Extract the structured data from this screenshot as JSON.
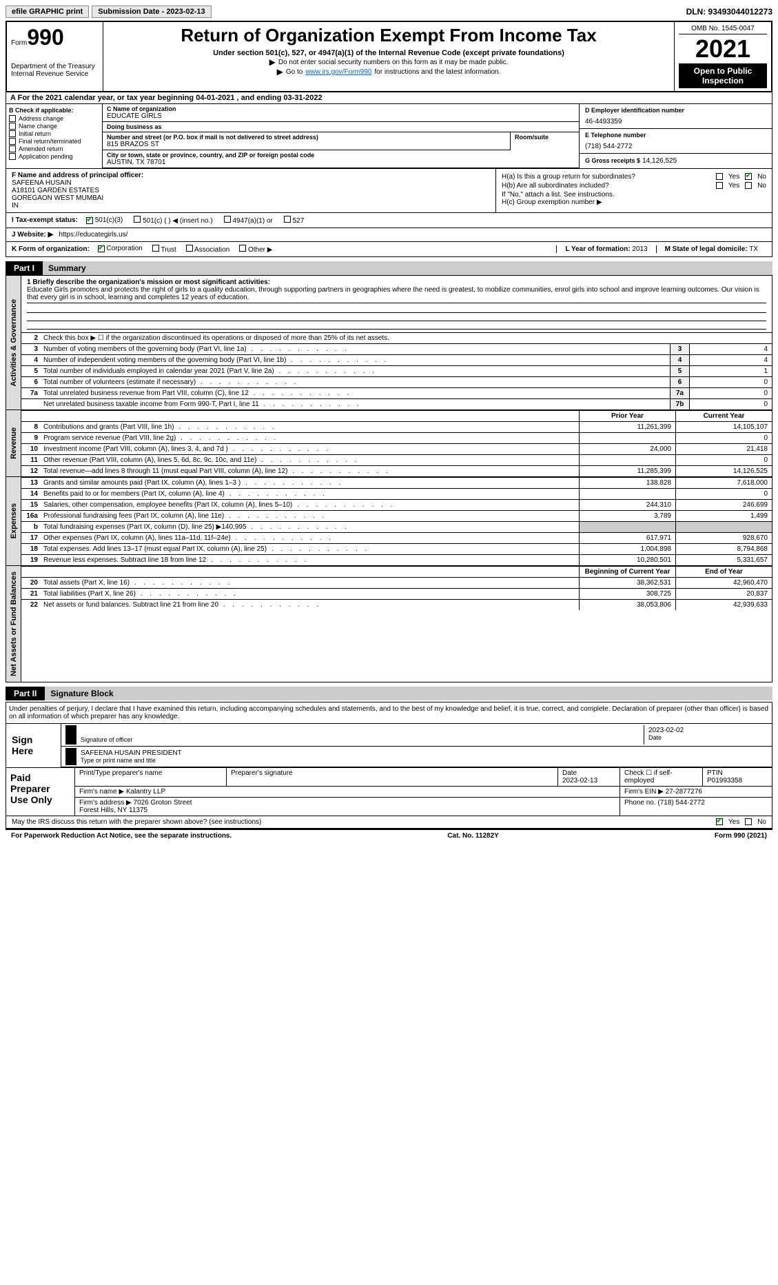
{
  "topbar": {
    "efile": "efile GRAPHIC print",
    "submission": "Submission Date - 2023-02-13",
    "dln": "DLN: 93493044012273"
  },
  "header": {
    "form_prefix": "Form",
    "form_num": "990",
    "dept": "Department of the Treasury\nInternal Revenue Service",
    "title": "Return of Organization Exempt From Income Tax",
    "sub1": "Under section 501(c), 527, or 4947(a)(1) of the Internal Revenue Code (except private foundations)",
    "sub2": "Do not enter social security numbers on this form as it may be made public.",
    "sub3a": "Go to ",
    "sub3_link": "www.irs.gov/Form990",
    "sub3b": " for instructions and the latest information.",
    "omb": "OMB No. 1545-0047",
    "year": "2021",
    "inspect": "Open to Public Inspection"
  },
  "period": "For the 2021 calendar year, or tax year beginning 04-01-2021    , and ending 03-31-2022",
  "sectionB": {
    "label": "B Check if applicable:",
    "opts": [
      "Address change",
      "Name change",
      "Initial return",
      "Final return/terminated",
      "Amended return",
      "Application pending"
    ]
  },
  "sectionC": {
    "name_label": "C Name of organization",
    "name": "EDUCATE GIRLS",
    "dba_label": "Doing business as",
    "dba": "",
    "street_label": "Number and street (or P.O. box if mail is not delivered to street address)",
    "street": "815 BRAZOS ST",
    "room_label": "Room/suite",
    "room": "",
    "city_label": "City or town, state or province, country, and ZIP or foreign postal code",
    "city": "AUSTIN, TX  78701"
  },
  "sectionD": {
    "ein_label": "D Employer identification number",
    "ein": "46-4493359",
    "phone_label": "E Telephone number",
    "phone": "(718) 544-2772",
    "gross_label": "G Gross receipts $",
    "gross": "14,126,525"
  },
  "sectionF": {
    "label": "F  Name and address of principal officer:",
    "name": "SAFEENA HUSAIN",
    "addr1": "A18101 GARDEN ESTATES",
    "addr2": "GOREGAON WEST MUMBAI",
    "addr3": "IN"
  },
  "sectionH": {
    "a_label": "H(a)  Is this a group return for subordinates?",
    "b_label": "H(b)  Are all subordinates included?",
    "b_note": "If \"No,\" attach a list. See instructions.",
    "c_label": "H(c)  Group exemption number ▶"
  },
  "taxStatus": {
    "label": "I    Tax-exempt status:",
    "opts": [
      "501(c)(3)",
      "501(c) (  ) ◀ (insert no.)",
      "4947(a)(1) or",
      "527"
    ]
  },
  "rowJ": {
    "label": "J   Website: ▶",
    "val": "https://educategirls.us/"
  },
  "rowK": {
    "label": "K Form of organization:",
    "opts": [
      "Corporation",
      "Trust",
      "Association",
      "Other ▶"
    ],
    "l_label": "L Year of formation:",
    "l_val": "2013",
    "m_label": "M State of legal domicile:",
    "m_val": "TX"
  },
  "part1": {
    "hdr": "Part I",
    "title": "Summary",
    "mission_label": "1   Briefly describe the organization's mission or most significant activities:",
    "mission": "Educate Girls promotes and protects the right of girls to a quality education, through supporting partners in geographies where the need is greatest, to mobilize communities, enrol girls into school and improve learning outcomes. Our vision is that every girl is in school, learning and completes 12 years of education.",
    "q2": "Check this box ▶ ☐  if the organization discontinued its operations or disposed of more than 25% of its net assets.",
    "rows": [
      {
        "n": "3",
        "t": "Number of voting members of the governing body (Part VI, line 1a)",
        "b": "3",
        "v": "4"
      },
      {
        "n": "4",
        "t": "Number of independent voting members of the governing body (Part VI, line 1b)",
        "b": "4",
        "v": "4"
      },
      {
        "n": "5",
        "t": "Total number of individuals employed in calendar year 2021 (Part V, line 2a)",
        "b": "5",
        "v": "1"
      },
      {
        "n": "6",
        "t": "Total number of volunteers (estimate if necessary)",
        "b": "6",
        "v": "0"
      },
      {
        "n": "7a",
        "t": "Total unrelated business revenue from Part VIII, column (C), line 12",
        "b": "7a",
        "v": "0"
      },
      {
        "n": "",
        "t": "Net unrelated business taxable income from Form 990-T, Part I, line 11",
        "b": "7b",
        "v": "0"
      }
    ],
    "vtab_gov": "Activities & Governance",
    "vtab_rev": "Revenue",
    "vtab_exp": "Expenses",
    "vtab_net": "Net Assets or Fund Balances",
    "prior_hdr": "Prior Year",
    "curr_hdr": "Current Year",
    "revenue": [
      {
        "n": "8",
        "t": "Contributions and grants (Part VIII, line 1h)",
        "p": "11,261,399",
        "c": "14,105,107"
      },
      {
        "n": "9",
        "t": "Program service revenue (Part VIII, line 2g)",
        "p": "",
        "c": "0"
      },
      {
        "n": "10",
        "t": "Investment income (Part VIII, column (A), lines 3, 4, and 7d )",
        "p": "24,000",
        "c": "21,418"
      },
      {
        "n": "11",
        "t": "Other revenue (Part VIII, column (A), lines 5, 6d, 8c, 9c, 10c, and 11e)",
        "p": "",
        "c": "0"
      },
      {
        "n": "12",
        "t": "Total revenue—add lines 8 through 11 (must equal Part VIII, column (A), line 12)",
        "p": "11,285,399",
        "c": "14,126,525"
      }
    ],
    "expenses": [
      {
        "n": "13",
        "t": "Grants and similar amounts paid (Part IX, column (A), lines 1–3 )",
        "p": "138,828",
        "c": "7,618,000"
      },
      {
        "n": "14",
        "t": "Benefits paid to or for members (Part IX, column (A), line 4)",
        "p": "",
        "c": "0"
      },
      {
        "n": "15",
        "t": "Salaries, other compensation, employee benefits (Part IX, column (A), lines 5–10)",
        "p": "244,310",
        "c": "246,699"
      },
      {
        "n": "16a",
        "t": "Professional fundraising fees (Part IX, column (A), line 11e)",
        "p": "3,789",
        "c": "1,499"
      },
      {
        "n": "b",
        "t": "Total fundraising expenses (Part IX, column (D), line 25) ▶140,995",
        "p": "shaded",
        "c": "shaded"
      },
      {
        "n": "17",
        "t": "Other expenses (Part IX, column (A), lines 11a–11d, 11f–24e)",
        "p": "617,971",
        "c": "928,670"
      },
      {
        "n": "18",
        "t": "Total expenses. Add lines 13–17 (must equal Part IX, column (A), line 25)",
        "p": "1,004,898",
        "c": "8,794,868"
      },
      {
        "n": "19",
        "t": "Revenue less expenses. Subtract line 18 from line 12",
        "p": "10,280,501",
        "c": "5,331,657"
      }
    ],
    "beg_hdr": "Beginning of Current Year",
    "end_hdr": "End of Year",
    "netassets": [
      {
        "n": "20",
        "t": "Total assets (Part X, line 16)",
        "p": "38,362,531",
        "c": "42,960,470"
      },
      {
        "n": "21",
        "t": "Total liabilities (Part X, line 26)",
        "p": "308,725",
        "c": "20,837"
      },
      {
        "n": "22",
        "t": "Net assets or fund balances. Subtract line 21 from line 20",
        "p": "38,053,806",
        "c": "42,939,633"
      }
    ]
  },
  "part2": {
    "hdr": "Part II",
    "title": "Signature Block",
    "intro": "Under penalties of perjury, I declare that I have examined this return, including accompanying schedules and statements, and to the best of my knowledge and belief, it is true, correct, and complete. Declaration of preparer (other than officer) is based on all information of which preparer has any knowledge.",
    "sign_here": "Sign Here",
    "sig_label": "Signature of officer",
    "sig_date": "2023-02-02",
    "date_label": "Date",
    "officer": "SAFEENA HUSAIN  PRESIDENT",
    "officer_label": "Type or print name and title",
    "prep_label": "Paid Preparer Use Only",
    "prep_name_label": "Print/Type preparer's name",
    "prep_sig_label": "Preparer's signature",
    "prep_date_label": "Date",
    "prep_date": "2023-02-13",
    "prep_check": "Check ☐ if self-employed",
    "ptin_label": "PTIN",
    "ptin": "P01993358",
    "firm_name_label": "Firm's name    ▶",
    "firm_name": "Kalantry LLP",
    "firm_ein_label": "Firm's EIN ▶",
    "firm_ein": "27-2877276",
    "firm_addr_label": "Firm's address ▶",
    "firm_addr": "7026 Groton Street\nForest Hills, NY  11375",
    "firm_phone_label": "Phone no.",
    "firm_phone": "(718) 544-2772",
    "discuss": "May the IRS discuss this return with the preparer shown above? (see instructions)"
  },
  "footer": {
    "paperwork": "For Paperwork Reduction Act Notice, see the separate instructions.",
    "cat": "Cat. No. 11282Y",
    "form": "Form 990 (2021)"
  }
}
